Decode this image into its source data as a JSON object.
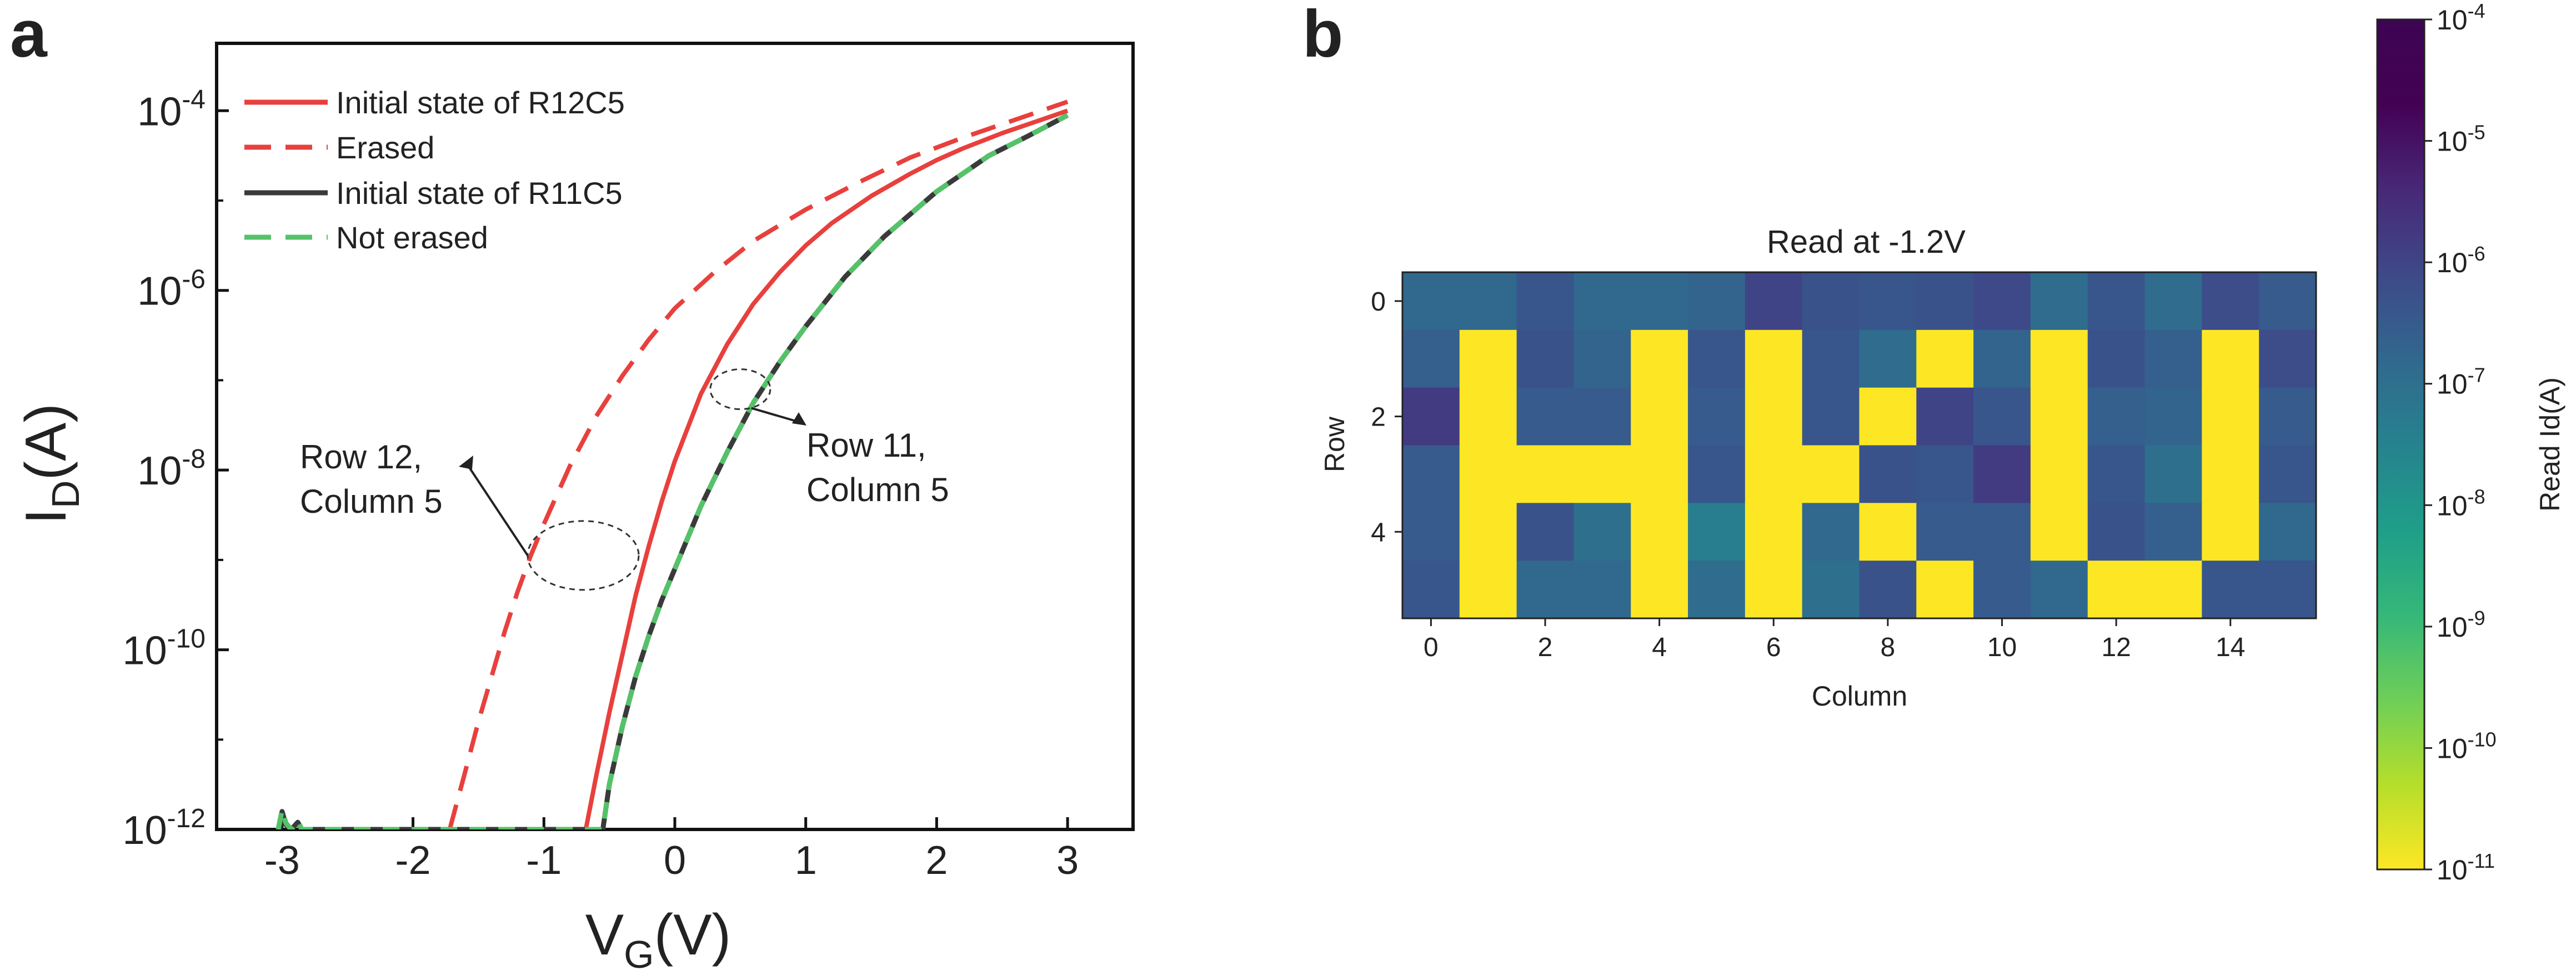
{
  "panel_a_label": "a",
  "panel_b_label": "b",
  "chart_data": [
    {
      "type": "line",
      "panel": "a",
      "xlabel": {
        "base": "V",
        "sub": "G",
        "unit": "(V)"
      },
      "ylabel": {
        "base": "I",
        "sub": "D",
        "unit": "(A)"
      },
      "xlim": [
        -3.5,
        3.5
      ],
      "ylim_log10": [
        -12,
        -3.25
      ],
      "xticks": [
        -3,
        -2,
        -1,
        0,
        1,
        2,
        3
      ],
      "xtick_labels": [
        "-3",
        "-2",
        "-1",
        "0",
        "1",
        "2",
        "3"
      ],
      "yticks_log10": [
        -12,
        -10,
        -8,
        -6,
        -4
      ],
      "ytick_labels": [
        {
          "base": "10",
          "exp": "-12"
        },
        {
          "base": "10",
          "exp": "-10"
        },
        {
          "base": "10",
          "exp": "-8"
        },
        {
          "base": "10",
          "exp": "-6"
        },
        {
          "base": "10",
          "exp": "-4"
        }
      ],
      "legend_position": "top-left",
      "series": [
        {
          "name": "Initial state of R12C5",
          "color": "#e8403d",
          "style": "solid",
          "x": [
            -0.68,
            -0.6,
            -0.5,
            -0.4,
            -0.3,
            -0.2,
            -0.1,
            0,
            0.2,
            0.4,
            0.6,
            0.8,
            1,
            1.2,
            1.5,
            1.8,
            2,
            2.2,
            2.5,
            2.8,
            3
          ],
          "log10_y": [
            -12,
            -11.4,
            -10.7,
            -10.05,
            -9.4,
            -8.85,
            -8.35,
            -7.9,
            -7.15,
            -6.6,
            -6.15,
            -5.8,
            -5.5,
            -5.25,
            -4.95,
            -4.7,
            -4.55,
            -4.42,
            -4.25,
            -4.1,
            -4
          ]
        },
        {
          "name": "Erased",
          "color": "#e8403d",
          "style": "dashed",
          "x": [
            -1.72,
            -1.6,
            -1.5,
            -1.4,
            -1.3,
            -1.2,
            -1.1,
            -1,
            -0.8,
            -0.6,
            -0.4,
            -0.2,
            0,
            0.3,
            0.6,
            1,
            1.4,
            1.8,
            2.2,
            2.6,
            3
          ],
          "log10_y": [
            -12,
            -11.35,
            -10.8,
            -10.3,
            -9.8,
            -9.35,
            -8.95,
            -8.6,
            -7.95,
            -7.4,
            -6.95,
            -6.55,
            -6.2,
            -5.8,
            -5.45,
            -5.1,
            -4.8,
            -4.52,
            -4.3,
            -4.1,
            -3.9
          ]
        },
        {
          "name": "Initial state of R11C5",
          "color": "#3a3a3a",
          "style": "solid",
          "x": [
            -3.02,
            -3,
            -2.97,
            -2.93,
            -2.88,
            -2.85,
            -0.55,
            -0.5,
            -0.4,
            -0.3,
            -0.2,
            -0.1,
            0,
            0.2,
            0.4,
            0.6,
            0.8,
            1,
            1.3,
            1.6,
            2,
            2.4,
            2.7,
            3
          ],
          "log10_y": [
            -12,
            -11.8,
            -11.95,
            -12,
            -11.92,
            -12,
            -12,
            -11.5,
            -10.85,
            -10.3,
            -9.85,
            -9.45,
            -9.1,
            -8.4,
            -7.8,
            -7.25,
            -6.8,
            -6.4,
            -5.85,
            -5.4,
            -4.9,
            -4.5,
            -4.28,
            -4.05
          ]
        },
        {
          "name": "Not erased",
          "color": "#55c26a",
          "style": "dashed",
          "x": [
            -3.03,
            -3,
            -2.97,
            -2.93,
            -2.88,
            -2.85,
            -0.55,
            -0.5,
            -0.4,
            -0.3,
            -0.2,
            -0.1,
            0,
            0.2,
            0.4,
            0.6,
            0.8,
            1,
            1.3,
            1.6,
            2,
            2.4,
            2.7,
            3
          ],
          "log10_y": [
            -12,
            -11.78,
            -11.93,
            -12,
            -11.9,
            -12,
            -12,
            -11.5,
            -10.85,
            -10.3,
            -9.85,
            -9.45,
            -9.1,
            -8.4,
            -7.8,
            -7.25,
            -6.8,
            -6.4,
            -5.85,
            -5.4,
            -4.9,
            -4.5,
            -4.28,
            -4.05
          ]
        }
      ],
      "annotations": [
        {
          "id": "anno-r12",
          "lines": [
            "Row 12,",
            "Column 5"
          ],
          "ellipse_center": [
            -0.7,
            -8.95
          ]
        },
        {
          "id": "anno-r11",
          "lines": [
            "Row 11,",
            "Column 5"
          ],
          "ellipse_center": [
            0.5,
            -7.1
          ]
        }
      ]
    },
    {
      "type": "heatmap",
      "panel": "b",
      "title": "Read at -1.2V",
      "xlabel": "Column",
      "ylabel": "Row",
      "rows": 6,
      "cols": 16,
      "xticks": [
        0,
        2,
        4,
        6,
        8,
        10,
        12,
        14
      ],
      "yticks": [
        0,
        2,
        4
      ],
      "colorbar_label": "Read Id(A)",
      "colorbar_range_log10": [
        -11,
        -4
      ],
      "colorbar_ticks": [
        {
          "base": "10",
          "exp": "-4"
        },
        {
          "base": "10",
          "exp": "-5"
        },
        {
          "base": "10",
          "exp": "-6"
        },
        {
          "base": "10",
          "exp": "-7"
        },
        {
          "base": "10",
          "exp": "-8"
        },
        {
          "base": "10",
          "exp": "-9"
        },
        {
          "base": "10",
          "exp": "-10"
        },
        {
          "base": "10",
          "exp": "-11"
        }
      ],
      "log10_values": [
        [
          -6.8,
          -6.8,
          -6.4,
          -6.8,
          -6.8,
          -6.7,
          -6.0,
          -6.3,
          -6.4,
          -6.3,
          -6.1,
          -6.9,
          -6.4,
          -6.9,
          -6.2,
          -6.5
        ],
        [
          -6.6,
          -11,
          -6.3,
          -6.7,
          -11,
          -6.4,
          -11,
          -6.4,
          -6.9,
          -11,
          -6.7,
          -11,
          -6.3,
          -6.6,
          -11,
          -6.2
        ],
        [
          -5.8,
          -11,
          -6.5,
          -6.5,
          -11,
          -6.5,
          -11,
          -6.4,
          -11,
          -6.0,
          -6.4,
          -11,
          -6.6,
          -6.7,
          -11,
          -6.5
        ],
        [
          -6.5,
          -11,
          -11,
          -11,
          -11,
          -6.4,
          -11,
          -11,
          -6.3,
          -6.4,
          -5.8,
          -11,
          -6.4,
          -7.0,
          -11,
          -6.4
        ],
        [
          -6.5,
          -11,
          -6.3,
          -7.0,
          -11,
          -7.4,
          -11,
          -6.8,
          -11,
          -6.5,
          -6.5,
          -11,
          -6.3,
          -6.6,
          -11,
          -6.8
        ],
        [
          -6.4,
          -11,
          -6.8,
          -6.8,
          -11,
          -6.9,
          -11,
          -7.0,
          -6.3,
          -11,
          -6.5,
          -6.8,
          -11,
          -11,
          -6.4,
          -6.4
        ]
      ]
    }
  ]
}
